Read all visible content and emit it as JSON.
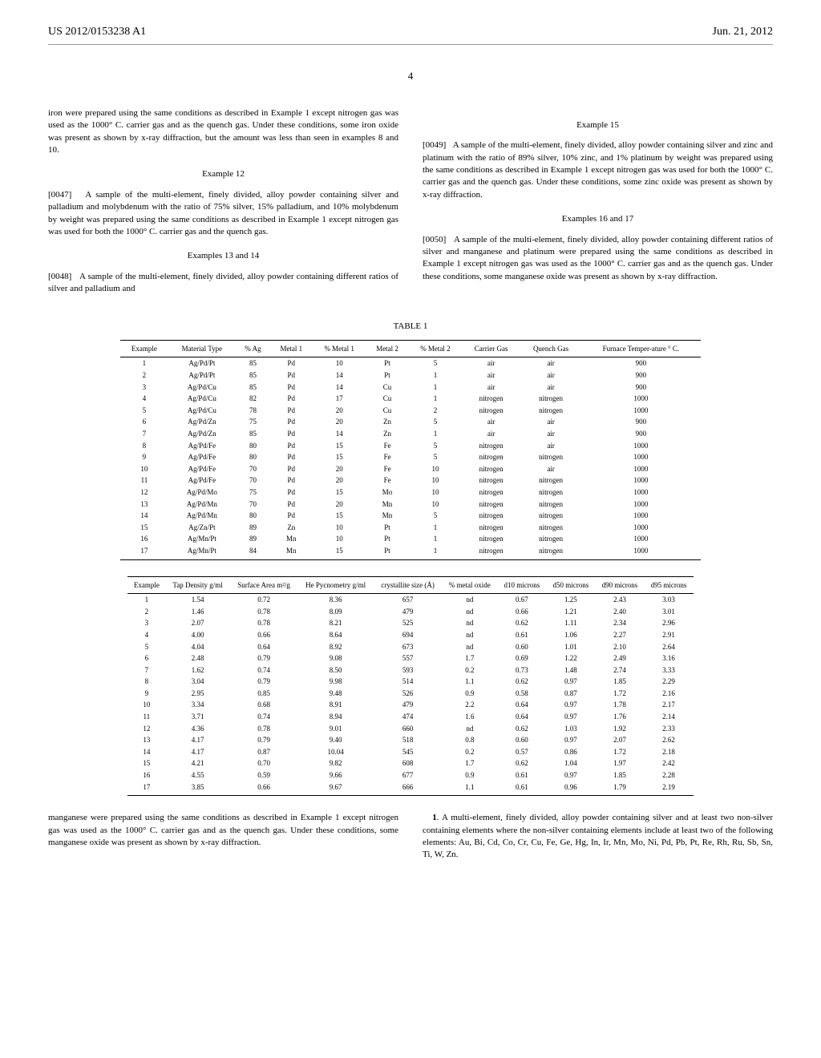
{
  "header": {
    "pub_number": "US 2012/0153238 A1",
    "date": "Jun. 21, 2012"
  },
  "page_number": "4",
  "left_column": {
    "para1": "iron were prepared using the same conditions as described in Example 1 except nitrogen gas was used as the 1000° C. carrier gas and as the quench gas. Under these conditions, some iron oxide was present as shown by x-ray diffraction, but the amount was less than seen in examples 8 and 10.",
    "example12_heading": "Example 12",
    "para12_label": "[0047]",
    "para12": "A sample of the multi-element, finely divided, alloy powder containing silver and palladium and molybdenum with the ratio of 75% silver, 15% palladium, and 10% molybdenum by weight was prepared using the same conditions as described in Example 1 except nitrogen gas was used for both the 1000° C. carrier gas and the quench gas.",
    "example13_heading": "Examples 13 and 14",
    "para13_label": "[0048]",
    "para13": "A sample of the multi-element, finely divided, alloy powder containing different ratios of silver and palladium and"
  },
  "right_column": {
    "example15_heading": "Example 15",
    "para15_label": "[0049]",
    "para15": "A sample of the multi-element, finely divided, alloy powder containing silver and zinc and platinum with the ratio of 89% silver, 10% zinc, and 1% platinum by weight was prepared using the same conditions as described in Example 1 except nitrogen gas was used for both the 1000° C. carrier gas and the quench gas. Under these conditions, some zinc oxide was present as shown by x-ray diffraction.",
    "example16_heading": "Examples 16 and 17",
    "para16_label": "[0050]",
    "para16": "A sample of the multi-element, finely divided, alloy powder containing different ratios of silver and manganese and platinum were prepared using the same conditions as described in Example 1 except nitrogen gas was used as the 1000° C. carrier gas and as the quench gas. Under these conditions, some manganese oxide was present as shown by x-ray diffraction."
  },
  "table_caption": "TABLE 1",
  "table1": {
    "headers": [
      "Example",
      "Material Type",
      "% Ag",
      "Metal 1",
      "% Metal 1",
      "Metal 2",
      "% Metal 2",
      "Carrier Gas",
      "Quench Gas",
      "Furnace Temper-ature ° C."
    ],
    "rows": [
      [
        "1",
        "Ag/Pd/Pt",
        "85",
        "Pd",
        "10",
        "Pt",
        "5",
        "air",
        "air",
        "900"
      ],
      [
        "2",
        "Ag/Pd/Pt",
        "85",
        "Pd",
        "14",
        "Pt",
        "1",
        "air",
        "air",
        "900"
      ],
      [
        "3",
        "Ag/Pd/Cu",
        "85",
        "Pd",
        "14",
        "Cu",
        "1",
        "air",
        "air",
        "900"
      ],
      [
        "4",
        "Ag/Pd/Cu",
        "82",
        "Pd",
        "17",
        "Cu",
        "1",
        "nitrogen",
        "nitrogen",
        "1000"
      ],
      [
        "5",
        "Ag/Pd/Cu",
        "78",
        "Pd",
        "20",
        "Cu",
        "2",
        "nitrogen",
        "nitrogen",
        "1000"
      ],
      [
        "6",
        "Ag/Pd/Zn",
        "75",
        "Pd",
        "20",
        "Zn",
        "5",
        "air",
        "air",
        "900"
      ],
      [
        "7",
        "Ag/Pd/Zn",
        "85",
        "Pd",
        "14",
        "Zn",
        "1",
        "air",
        "air",
        "900"
      ],
      [
        "8",
        "Ag/Pd/Fe",
        "80",
        "Pd",
        "15",
        "Fe",
        "5",
        "nitrogen",
        "air",
        "1000"
      ],
      [
        "9",
        "Ag/Pd/Fe",
        "80",
        "Pd",
        "15",
        "Fe",
        "5",
        "nitrogen",
        "nitrogen",
        "1000"
      ],
      [
        "10",
        "Ag/Pd/Fe",
        "70",
        "Pd",
        "20",
        "Fe",
        "10",
        "nitrogen",
        "air",
        "1000"
      ],
      [
        "11",
        "Ag/Pd/Fe",
        "70",
        "Pd",
        "20",
        "Fe",
        "10",
        "nitrogen",
        "nitrogen",
        "1000"
      ],
      [
        "12",
        "Ag/Pd/Mo",
        "75",
        "Pd",
        "15",
        "Mo",
        "10",
        "nitrogen",
        "nitrogen",
        "1000"
      ],
      [
        "13",
        "Ag/Pd/Mn",
        "70",
        "Pd",
        "20",
        "Mn",
        "10",
        "nitrogen",
        "nitrogen",
        "1000"
      ],
      [
        "14",
        "Ag/Pd/Mn",
        "80",
        "Pd",
        "15",
        "Mn",
        "5",
        "nitrogen",
        "nitrogen",
        "1000"
      ],
      [
        "15",
        "Ag/Zn/Pt",
        "89",
        "Zn",
        "10",
        "Pt",
        "1",
        "nitrogen",
        "nitrogen",
        "1000"
      ],
      [
        "16",
        "Ag/Mn/Pt",
        "89",
        "Mn",
        "10",
        "Pt",
        "1",
        "nitrogen",
        "nitrogen",
        "1000"
      ],
      [
        "17",
        "Ag/Mn/Pt",
        "84",
        "Mn",
        "15",
        "Pt",
        "1",
        "nitrogen",
        "nitrogen",
        "1000"
      ]
    ]
  },
  "table2": {
    "headers": [
      "Example",
      "Tap Density g/ml",
      "Surface Area m²/g",
      "He Pycnometry g/ml",
      "crystallite size (Å)",
      "% metal oxide",
      "d10 microns",
      "d50 microns",
      "d90 microns",
      "d95 microns"
    ],
    "rows": [
      [
        "1",
        "1.54",
        "0.72",
        "8.36",
        "657",
        "nd",
        "0.67",
        "1.25",
        "2.43",
        "3.03"
      ],
      [
        "2",
        "1.46",
        "0.78",
        "8.09",
        "479",
        "nd",
        "0.66",
        "1.21",
        "2.40",
        "3.01"
      ],
      [
        "3",
        "2.07",
        "0.78",
        "8.21",
        "525",
        "nd",
        "0.62",
        "1.11",
        "2.34",
        "2.96"
      ],
      [
        "4",
        "4.00",
        "0.66",
        "8.64",
        "694",
        "nd",
        "0.61",
        "1.06",
        "2.27",
        "2.91"
      ],
      [
        "5",
        "4.04",
        "0.64",
        "8.92",
        "673",
        "nd",
        "0.60",
        "1.01",
        "2.10",
        "2.64"
      ],
      [
        "6",
        "2.48",
        "0.79",
        "9.08",
        "557",
        "1.7",
        "0.69",
        "1.22",
        "2.49",
        "3.16"
      ],
      [
        "7",
        "1.62",
        "0.74",
        "8.50",
        "593",
        "0.2",
        "0.73",
        "1.48",
        "2.74",
        "3.33"
      ],
      [
        "8",
        "3.04",
        "0.79",
        "9.98",
        "514",
        "1.1",
        "0.62",
        "0.97",
        "1.85",
        "2.29"
      ],
      [
        "9",
        "2.95",
        "0.85",
        "9.48",
        "526",
        "0.9",
        "0.58",
        "0.87",
        "1.72",
        "2.16"
      ],
      [
        "10",
        "3.34",
        "0.68",
        "8.91",
        "479",
        "2.2",
        "0.64",
        "0.97",
        "1.78",
        "2.17"
      ],
      [
        "11",
        "3.71",
        "0.74",
        "8.94",
        "474",
        "1.6",
        "0.64",
        "0.97",
        "1.76",
        "2.14"
      ],
      [
        "12",
        "4.36",
        "0.78",
        "9.01",
        "660",
        "nd",
        "0.62",
        "1.03",
        "1.92",
        "2.33"
      ],
      [
        "13",
        "4.17",
        "0.79",
        "9.40",
        "518",
        "0.8",
        "0.60",
        "0.97",
        "2.07",
        "2.62"
      ],
      [
        "14",
        "4.17",
        "0.87",
        "10.04",
        "545",
        "0.2",
        "0.57",
        "0.86",
        "1.72",
        "2.18"
      ],
      [
        "15",
        "4.21",
        "0.70",
        "9.82",
        "608",
        "1.7",
        "0.62",
        "1.04",
        "1.97",
        "2.42"
      ],
      [
        "16",
        "4.55",
        "0.59",
        "9.66",
        "677",
        "0.9",
        "0.61",
        "0.97",
        "1.85",
        "2.28"
      ],
      [
        "17",
        "3.85",
        "0.66",
        "9.67",
        "666",
        "1.1",
        "0.61",
        "0.96",
        "1.79",
        "2.19"
      ]
    ]
  },
  "bottom_left": "manganese were prepared using the same conditions as described in Example 1 except nitrogen gas was used as the 1000° C. carrier gas and as the quench gas. Under these conditions, some manganese oxide was present as shown by x-ray diffraction.",
  "bottom_right_num": "1",
  "bottom_right": ". A multi-element, finely divided, alloy powder containing silver and at least two non-silver containing elements where the non-silver containing elements include at least two of the following elements: Au, Bi, Cd, Co, Cr, Cu, Fe, Ge, Hg, In, Ir, Mn, Mo, Ni, Pd, Pb, Pt, Re, Rh, Ru, Sb, Sn, Ti, W, Zn."
}
